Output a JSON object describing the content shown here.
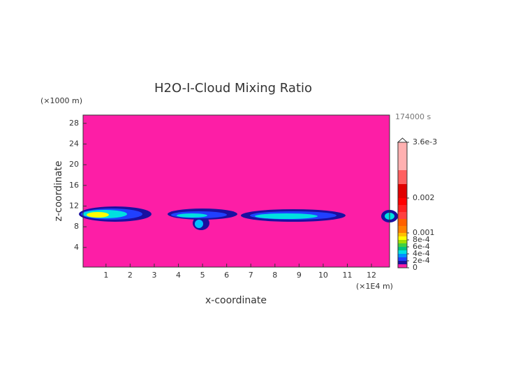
{
  "chart_data": {
    "type": "contour",
    "title": "H2O-I-Cloud Mixing Ratio",
    "time_label": "174000 s",
    "xlabel": "x-coordinate",
    "ylabel": "z-coordinate",
    "x_unit": "(×1E4 m)",
    "y_unit": "(×1000 m)",
    "background": "#fd1ea6",
    "xlim": [
      0.05,
      12.75
    ],
    "xticks": [
      1,
      2,
      3,
      4,
      5,
      6,
      7,
      8,
      9,
      10,
      11,
      12
    ],
    "ylim": [
      0.2,
      29.6
    ],
    "yticks": [
      4,
      8,
      12,
      16,
      20,
      24,
      28
    ],
    "colorbar": {
      "lim": [
        0,
        0.0036
      ],
      "ticks": [
        {
          "value": 0.0036,
          "label": "3.6e-3"
        },
        0.002,
        0.001,
        {
          "value": 0.0008,
          "label": "8e-4"
        },
        {
          "value": 0.0006,
          "label": "6e-4"
        },
        {
          "value": 0.0004,
          "label": "4e-4"
        },
        {
          "value": 0.0002,
          "label": "2e-4"
        },
        0
      ],
      "levels": [
        0,
        0.0001,
        0.0002,
        0.0003,
        0.0004,
        0.0005,
        0.0006,
        0.0007,
        0.0008,
        0.0009,
        0.001,
        0.0012,
        0.0014,
        0.0016,
        0.0018,
        0.002,
        0.0024,
        0.0028,
        0.0036
      ],
      "colors": [
        "#fd1ea6",
        "#1a10a0",
        "#2040ff",
        "#0090ff",
        "#00e0e0",
        "#00c080",
        "#40d040",
        "#a0e000",
        "#ffff00",
        "#ffc000",
        "#ff8000",
        "#ff6000",
        "#ff4040",
        "#ff2020",
        "#ff0000",
        "#e00000",
        "#ff6060",
        "#ffb0b0"
      ]
    }
  }
}
